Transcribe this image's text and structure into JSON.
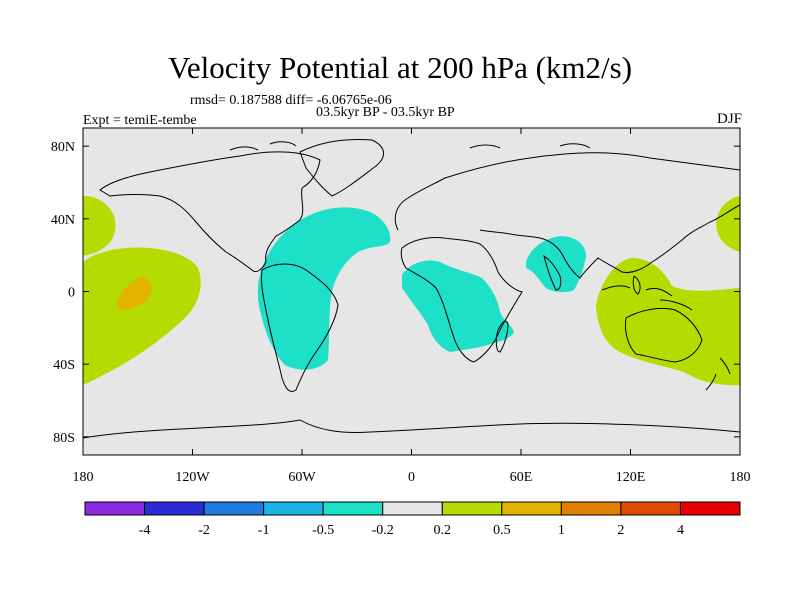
{
  "title": "Velocity Potential at 200 hPa (km2/s)",
  "stats_line": "rmsd= 0.187588 diff= -6.06765e-06",
  "period_line": "03.5kyr BP - 03.5kyr BP",
  "experiment": "Expt = temiE-tembe",
  "season": "DJF",
  "map": {
    "projection": "cylindrical-equidistant",
    "lon_range": [
      -180,
      180
    ],
    "lat_range": [
      -90,
      90
    ],
    "lon_ticks": [
      "180",
      "120W",
      "60W",
      "0",
      "60E",
      "120E",
      "180"
    ],
    "lat_ticks": [
      "80N",
      "40N",
      "0",
      "40S",
      "80S"
    ],
    "ocean_color": "#e6e6e6",
    "coast_color": "#000000"
  },
  "colorbar": {
    "colors": [
      "#8a2be2",
      "#2b2bd6",
      "#1e7be0",
      "#1eb4e6",
      "#1ee0c8",
      "#e6e6e6",
      "#b4dc00",
      "#e0b400",
      "#e08200",
      "#e04b00",
      "#e60000"
    ],
    "labels": [
      "-4",
      "-2",
      "-1",
      "-0.5",
      "-0.2",
      "0.2",
      "0.5",
      "1",
      "2",
      "4"
    ]
  },
  "features": [
    {
      "name": "atlantic-negative-region",
      "level": "-0.5 to -0.2",
      "color": "#1ee0c8"
    },
    {
      "name": "africa-negative-region",
      "level": "-0.5 to -0.2",
      "color": "#1ee0c8"
    },
    {
      "name": "arabian-sea-negative-region",
      "level": "-0.5 to -0.2",
      "color": "#1ee0c8"
    },
    {
      "name": "maritime-continent-positive-region",
      "level": "0.2 to 0.5",
      "color": "#b4dc00"
    },
    {
      "name": "central-pacific-positive-region",
      "level": "0.2 to 0.5",
      "color": "#b4dc00"
    },
    {
      "name": "central-pacific-core-region",
      "level": "0.5 to 1",
      "color": "#e0b400"
    }
  ]
}
